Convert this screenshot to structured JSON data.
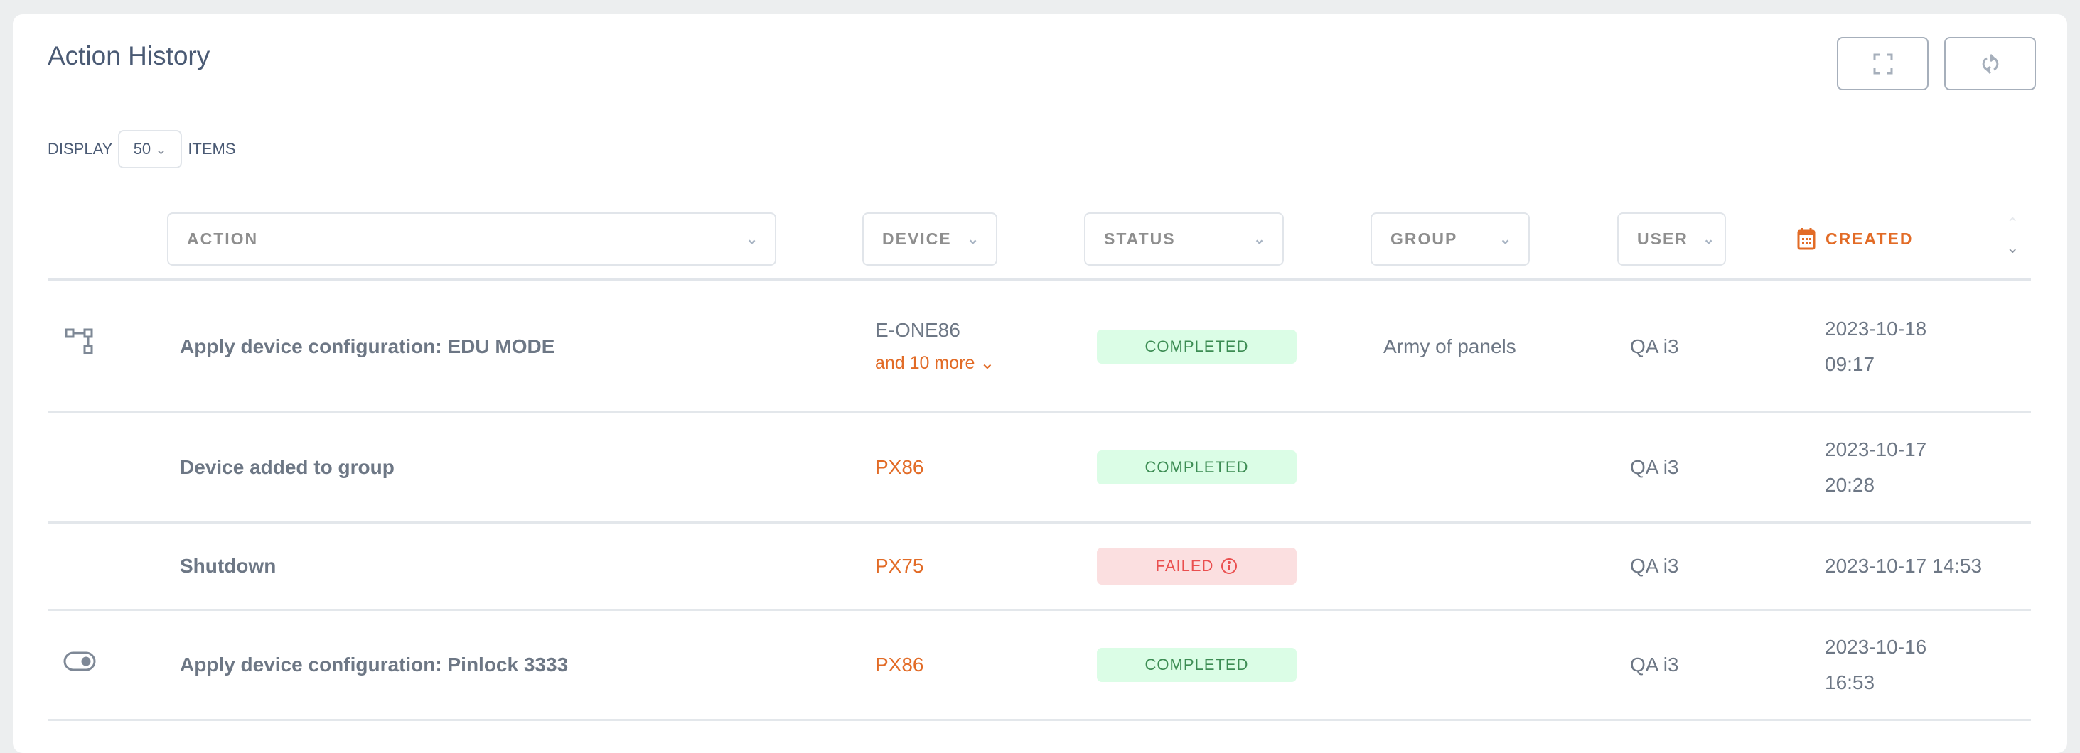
{
  "header": {
    "title": "Action History",
    "fullscreen_icon": "fullscreen-icon",
    "refresh_icon": "refresh-icon"
  },
  "display": {
    "prefix": "DISPLAY",
    "value": "50",
    "suffix": "ITEMS"
  },
  "columns": {
    "action": "ACTION",
    "device": "DEVICE",
    "status": "STATUS",
    "group": "GROUP",
    "user": "USER",
    "created": "CREATED"
  },
  "colors": {
    "accent": "#e26b26",
    "completed_bg": "#dbfde6",
    "completed_text": "#3c8c53",
    "failed_bg": "#fbdfe0",
    "failed_text": "#ea4f4f"
  },
  "rows": [
    {
      "icon": "hierarchy-icon",
      "action": "Apply device configuration: EDU MODE",
      "device": "E-ONE86",
      "device_more": "and 10 more",
      "status": "COMPLETED",
      "group": "Army of panels",
      "user": "QA i3",
      "created_date": "2023-10-18",
      "created_time": "09:17"
    },
    {
      "icon": "",
      "action": "Device added to group",
      "device": "PX86",
      "status": "COMPLETED",
      "group": "",
      "user": "QA i3",
      "created_date": "2023-10-17",
      "created_time": "20:28"
    },
    {
      "icon": "",
      "action": "Shutdown",
      "device": "PX75",
      "status": "FAILED",
      "group": "",
      "user": "QA i3",
      "created": "2023-10-17 14:53"
    },
    {
      "icon": "toggle-icon",
      "action": "Apply device configuration: Pinlock 3333",
      "device": "PX86",
      "status": "COMPLETED",
      "group": "",
      "user": "QA i3",
      "created_date": "2023-10-16",
      "created_time": "16:53"
    }
  ]
}
